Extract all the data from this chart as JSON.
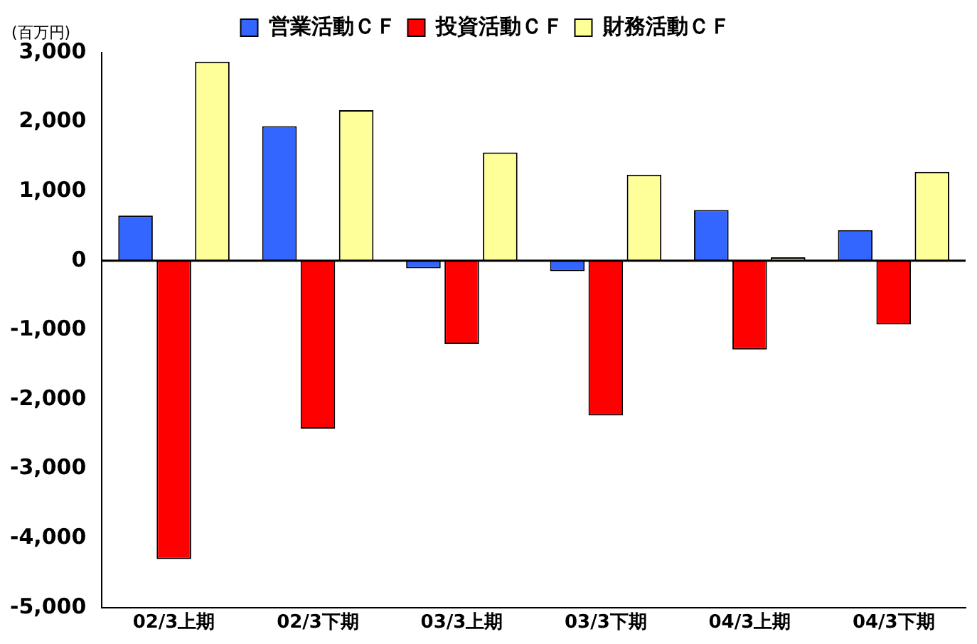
{
  "chart_data": {
    "type": "bar",
    "ylabel": "(百万円)",
    "categories": [
      "02/3上期",
      "02/3下期",
      "03/3上期",
      "03/3下期",
      "04/3上期",
      "04/3下期"
    ],
    "series": [
      {
        "name": "営業活動ＣＦ",
        "color": "#3366ff",
        "values": [
          650,
          1940,
          -110,
          -150,
          730,
          440
        ]
      },
      {
        "name": "投資活動ＣＦ",
        "color": "#ff0000",
        "values": [
          -4300,
          -2420,
          -1200,
          -2230,
          -1280,
          -920
        ]
      },
      {
        "name": "財務活動ＣＦ",
        "color": "#ffff99",
        "values": [
          2870,
          2170,
          1560,
          1240,
          50,
          1280
        ]
      }
    ],
    "ylim": [
      -5000,
      3000
    ],
    "yticks": [
      {
        "value": -5000,
        "label": "-5,000"
      },
      {
        "value": -4000,
        "label": "-4,000"
      },
      {
        "value": -3000,
        "label": "-3,000"
      },
      {
        "value": -2000,
        "label": "-2,000"
      },
      {
        "value": -1000,
        "label": "-1,000"
      },
      0,
      {
        "value": 1000,
        "label": "1,000"
      },
      {
        "value": 2000,
        "label": "2,000"
      },
      {
        "value": 3000,
        "label": "3,000"
      }
    ],
    "ref_lines": [
      {
        "axis": "y",
        "value": 0,
        "color": "#000000"
      }
    ],
    "grid": false,
    "legend": "top"
  }
}
